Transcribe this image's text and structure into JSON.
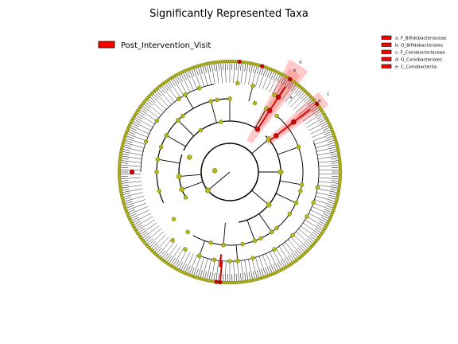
{
  "title": "Significantly Represented Taxa",
  "group_legend": {
    "label": "Post_Intervention_Visit",
    "color": "#ff0000"
  },
  "clade_legend": [
    {
      "letter": "a",
      "label": "a: F_Bifidobacteriaceae"
    },
    {
      "letter": "b",
      "label": "b: O_Bifidobacteriales"
    },
    {
      "letter": "c",
      "label": "c: F_Coriobacteriaceae"
    },
    {
      "letter": "d",
      "label": "d: O_Coriobacteriales"
    },
    {
      "letter": "e",
      "label": "e: C_Coriobacteriia"
    }
  ],
  "colors": {
    "node_default": "#b5b81b",
    "node_stroke": "#6d6e10",
    "highlight_node": "#d00000",
    "highlight_shade": "#ff6666",
    "edge": "#000000"
  }
}
